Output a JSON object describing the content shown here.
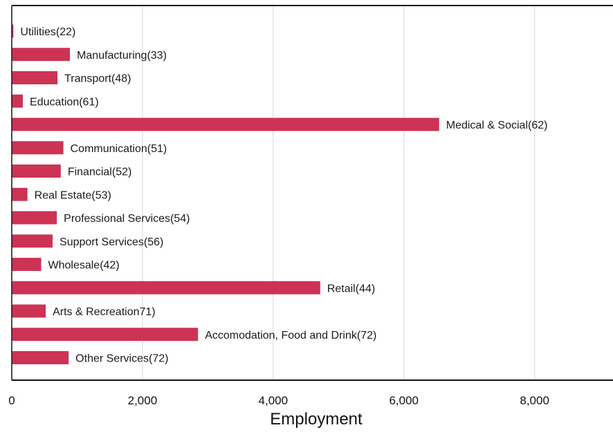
{
  "chart_data": {
    "type": "bar",
    "orientation": "horizontal",
    "categories": [
      "Utilities(22)",
      "Manufacturing(33)",
      "Transport(48)",
      "Education(61)",
      "Medical & Social(62)",
      "Communication(51)",
      "Financial(52)",
      "Real Estate(53)",
      "Professional Services(54)",
      "Support Services(56)",
      "Wholesale(42)",
      "Retail(44)",
      "Arts & Recreation71)",
      "Accomodation, Food and Drink(72)",
      "Other Services(72)"
    ],
    "values": [
      25,
      890,
      700,
      170,
      6540,
      790,
      750,
      240,
      690,
      625,
      450,
      4720,
      520,
      2850,
      870
    ],
    "title": "",
    "xlabel": "Employment",
    "ylabel": "",
    "xlim": [
      0,
      9200
    ],
    "xticks": [
      0,
      2000,
      4000,
      6000,
      8000
    ],
    "xtick_labels": [
      "0",
      "2,000",
      "4,000",
      "6,000",
      "8,000"
    ],
    "grid": "vertical",
    "bar_color": "#cc3355",
    "grid_color": "#d6d6d6"
  }
}
